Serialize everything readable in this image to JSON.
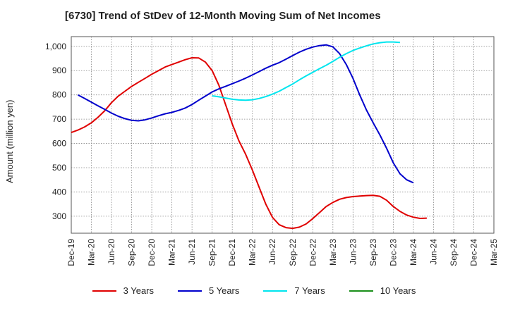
{
  "chart_data": {
    "type": "line",
    "title": "[6730]  Trend of StDev of 12-Month Moving Sum of Net Incomes",
    "ylabel": "Amount (million yen)",
    "xlabel": "",
    "x_ticks": [
      "Dec-19",
      "Mar-20",
      "Jun-20",
      "Sep-20",
      "Dec-20",
      "Mar-21",
      "Jun-21",
      "Sep-21",
      "Dec-21",
      "Mar-22",
      "Jun-22",
      "Sep-22",
      "Dec-22",
      "Mar-23",
      "Jun-23",
      "Sep-23",
      "Dec-23",
      "Mar-24",
      "Jun-24",
      "Sep-24",
      "Dec-24",
      "Mar-25"
    ],
    "y_ticks": [
      "300",
      "400",
      "500",
      "600",
      "700",
      "800",
      "900",
      "1,000"
    ],
    "ylim": [
      230,
      1040
    ],
    "grid": true,
    "legend_position": "bottom",
    "series": [
      {
        "name": "3 Years",
        "color": "#e00000",
        "values": [
          [
            0,
            645
          ],
          [
            1,
            655
          ],
          [
            2,
            668
          ],
          [
            3,
            685
          ],
          [
            4,
            708
          ],
          [
            5,
            735
          ],
          [
            6,
            768
          ],
          [
            7,
            795
          ],
          [
            8,
            815
          ],
          [
            9,
            835
          ],
          [
            10,
            852
          ],
          [
            11,
            868
          ],
          [
            12,
            885
          ],
          [
            13,
            900
          ],
          [
            14,
            915
          ],
          [
            15,
            925
          ],
          [
            16,
            935
          ],
          [
            17,
            945
          ],
          [
            18,
            953
          ],
          [
            19,
            952
          ],
          [
            20,
            935
          ],
          [
            21,
            900
          ],
          [
            22,
            840
          ],
          [
            23,
            760
          ],
          [
            24,
            680
          ],
          [
            25,
            610
          ],
          [
            26,
            555
          ],
          [
            27,
            490
          ],
          [
            28,
            420
          ],
          [
            29,
            350
          ],
          [
            30,
            295
          ],
          [
            31,
            265
          ],
          [
            32,
            253
          ],
          [
            33,
            250
          ],
          [
            34,
            255
          ],
          [
            35,
            268
          ],
          [
            36,
            290
          ],
          [
            37,
            315
          ],
          [
            38,
            340
          ],
          [
            39,
            357
          ],
          [
            40,
            370
          ],
          [
            41,
            377
          ],
          [
            42,
            381
          ],
          [
            43,
            383
          ],
          [
            44,
            385
          ],
          [
            45,
            386
          ],
          [
            46,
            382
          ],
          [
            47,
            366
          ],
          [
            48,
            340
          ],
          [
            49,
            320
          ],
          [
            50,
            305
          ],
          [
            51,
            296
          ],
          [
            52,
            291
          ],
          [
            53,
            292
          ]
        ]
      },
      {
        "name": "5 Years",
        "color": "#0000cc",
        "values": [
          [
            1,
            800
          ],
          [
            2,
            785
          ],
          [
            3,
            770
          ],
          [
            4,
            755
          ],
          [
            5,
            740
          ],
          [
            6,
            725
          ],
          [
            7,
            712
          ],
          [
            8,
            702
          ],
          [
            9,
            695
          ],
          [
            10,
            693
          ],
          [
            11,
            697
          ],
          [
            12,
            705
          ],
          [
            13,
            714
          ],
          [
            14,
            722
          ],
          [
            15,
            728
          ],
          [
            16,
            736
          ],
          [
            17,
            746
          ],
          [
            18,
            760
          ],
          [
            19,
            778
          ],
          [
            20,
            795
          ],
          [
            21,
            812
          ],
          [
            22,
            825
          ],
          [
            23,
            835
          ],
          [
            24,
            846
          ],
          [
            25,
            857
          ],
          [
            26,
            869
          ],
          [
            27,
            882
          ],
          [
            28,
            896
          ],
          [
            29,
            910
          ],
          [
            30,
            922
          ],
          [
            31,
            933
          ],
          [
            32,
            947
          ],
          [
            33,
            962
          ],
          [
            34,
            976
          ],
          [
            35,
            988
          ],
          [
            36,
            997
          ],
          [
            37,
            1003
          ],
          [
            38,
            1006
          ],
          [
            39,
            998
          ],
          [
            40,
            970
          ],
          [
            41,
            925
          ],
          [
            42,
            868
          ],
          [
            43,
            800
          ],
          [
            44,
            738
          ],
          [
            45,
            685
          ],
          [
            46,
            635
          ],
          [
            47,
            580
          ],
          [
            48,
            520
          ],
          [
            49,
            475
          ],
          [
            50,
            450
          ],
          [
            51,
            438
          ]
        ]
      },
      {
        "name": "7 Years",
        "color": "#00e5ee",
        "values": [
          [
            21,
            796
          ],
          [
            22,
            792
          ],
          [
            23,
            787
          ],
          [
            24,
            782
          ],
          [
            25,
            779
          ],
          [
            26,
            778
          ],
          [
            27,
            780
          ],
          [
            28,
            785
          ],
          [
            29,
            793
          ],
          [
            30,
            803
          ],
          [
            31,
            815
          ],
          [
            32,
            830
          ],
          [
            33,
            845
          ],
          [
            34,
            862
          ],
          [
            35,
            878
          ],
          [
            36,
            893
          ],
          [
            37,
            908
          ],
          [
            38,
            922
          ],
          [
            39,
            938
          ],
          [
            40,
            955
          ],
          [
            41,
            970
          ],
          [
            42,
            983
          ],
          [
            43,
            993
          ],
          [
            44,
            1002
          ],
          [
            45,
            1010
          ],
          [
            46,
            1015
          ],
          [
            47,
            1018
          ],
          [
            48,
            1018
          ],
          [
            49,
            1016
          ]
        ]
      },
      {
        "name": "10 Years",
        "color": "#1a8f1a",
        "values": []
      }
    ]
  }
}
